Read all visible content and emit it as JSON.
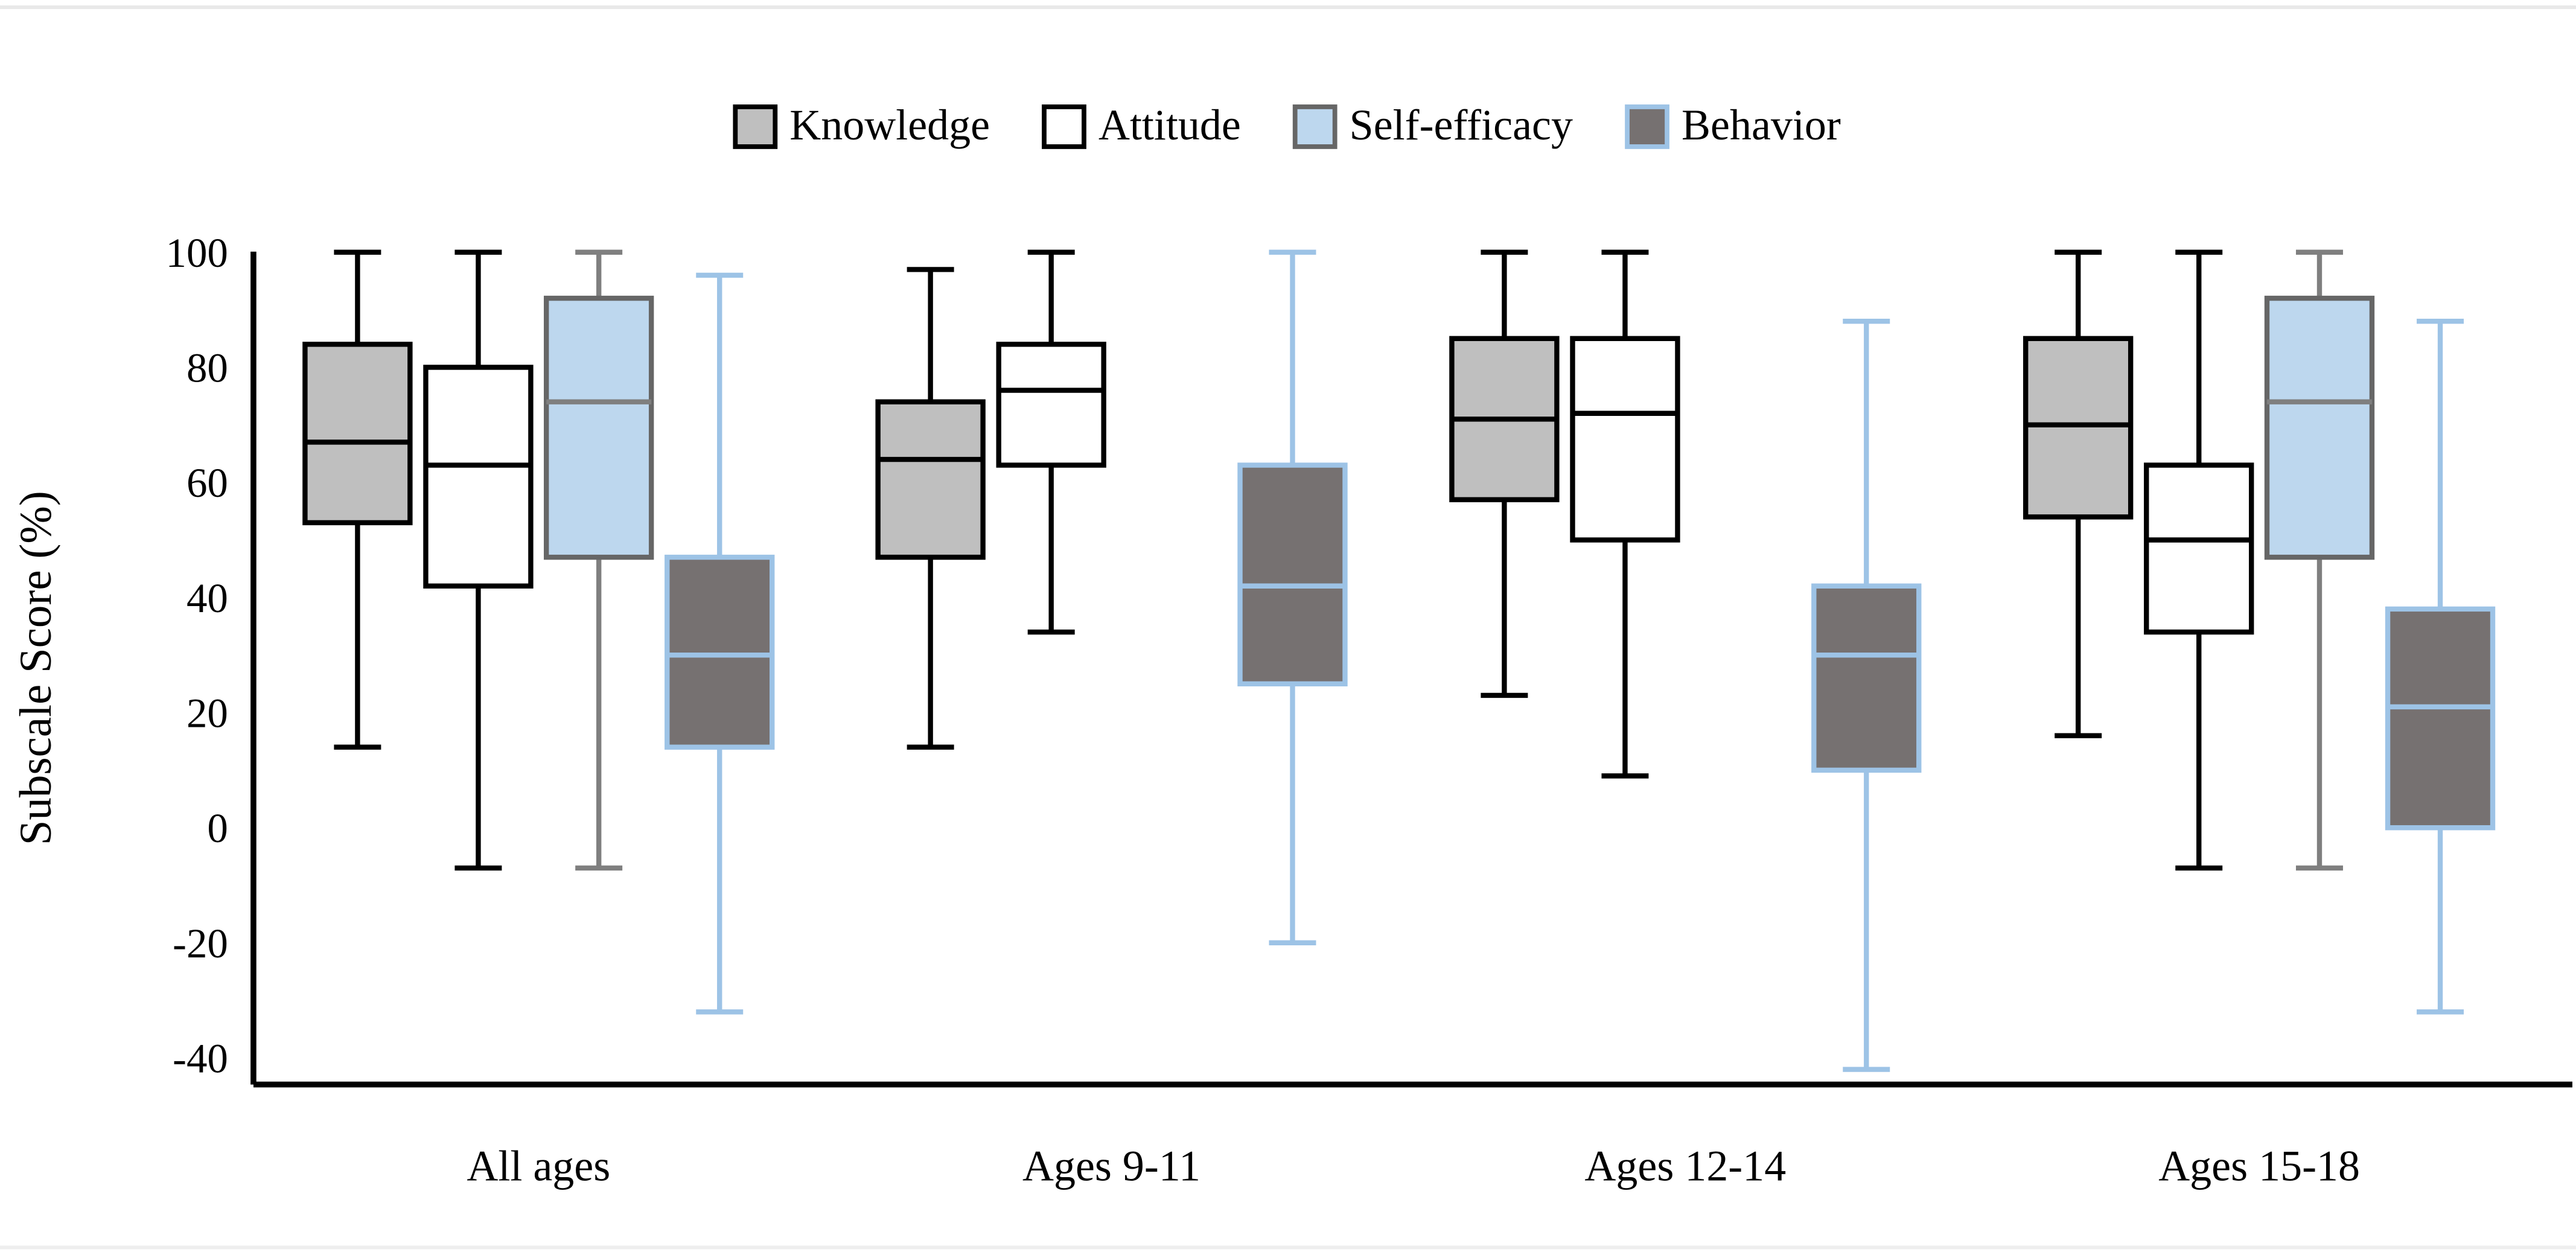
{
  "page": {
    "background": "#ffffff",
    "top_divider_color": "#e9e9e9",
    "bottom_divider_color": "#eeeeee"
  },
  "legend": {
    "position": "top-center",
    "items": [
      {
        "label": "Knowledge",
        "fill": "#bfbfbf",
        "border": "#000000"
      },
      {
        "label": "Attitude",
        "fill": "#ffffff",
        "border": "#000000"
      },
      {
        "label": "Self-efficacy",
        "fill": "#bdd7ee",
        "border": "#666666"
      },
      {
        "label": "Behavior",
        "fill": "#767171",
        "border": "#9dc3e6"
      }
    ]
  },
  "chart_data": {
    "type": "boxplot",
    "title": "",
    "xlabel": "",
    "ylabel": "Subscale Score (%)",
    "grid": false,
    "legend_position": "top",
    "y_ticks": [
      100,
      80,
      60,
      40,
      20,
      0,
      -20,
      -40
    ],
    "ylim": [
      -45,
      102
    ],
    "categories": [
      "All ages",
      "Ages 9-11",
      "Ages 12-14",
      "Ages 15-18"
    ],
    "box_stats_order": [
      "min",
      "q1",
      "median",
      "q3",
      "max"
    ],
    "series": [
      {
        "name": "Knowledge",
        "fill": "#bfbfbf",
        "stroke": "#000000",
        "whisker": "#000000",
        "boxes": [
          {
            "category": "All ages",
            "min": 14,
            "q1": 53,
            "median": 67,
            "q3": 84,
            "max": 100
          },
          {
            "category": "Ages 9-11",
            "min": 14,
            "q1": 47,
            "median": 64,
            "q3": 74,
            "max": 97
          },
          {
            "category": "Ages 12-14",
            "min": 23,
            "q1": 57,
            "median": 71,
            "q3": 85,
            "max": 100
          },
          {
            "category": "Ages 15-18",
            "min": 16,
            "q1": 54,
            "median": 70,
            "q3": 85,
            "max": 100
          }
        ]
      },
      {
        "name": "Attitude",
        "fill": "#ffffff",
        "stroke": "#000000",
        "whisker": "#000000",
        "boxes": [
          {
            "category": "All ages",
            "min": -7,
            "q1": 42,
            "median": 63,
            "q3": 80,
            "max": 100
          },
          {
            "category": "Ages 9-11",
            "min": 34,
            "q1": 63,
            "median": 76,
            "q3": 84,
            "max": 100
          },
          {
            "category": "Ages 12-14",
            "min": 9,
            "q1": 50,
            "median": 72,
            "q3": 85,
            "max": 100
          },
          {
            "category": "Ages 15-18",
            "min": -7,
            "q1": 34,
            "median": 50,
            "q3": 63,
            "max": 100
          }
        ]
      },
      {
        "name": "Self-efficacy",
        "fill": "#bdd7ee",
        "stroke": "#666666",
        "whisker": "#7f7f7f",
        "boxes": [
          {
            "category": "All ages",
            "min": -7,
            "q1": 47,
            "median": 74,
            "q3": 92,
            "max": 100
          },
          null,
          null,
          {
            "category": "Ages 15-18",
            "min": -7,
            "q1": 47,
            "median": 74,
            "q3": 92,
            "max": 100
          }
        ]
      },
      {
        "name": "Behavior",
        "fill": "#767171",
        "stroke": "#9dc3e6",
        "whisker": "#9dc3e6",
        "boxes": [
          {
            "category": "All ages",
            "min": -32,
            "q1": 14,
            "median": 30,
            "q3": 47,
            "max": 96
          },
          {
            "category": "Ages 9-11",
            "min": -20,
            "q1": 25,
            "median": 42,
            "q3": 63,
            "max": 100
          },
          {
            "category": "Ages 12-14",
            "min": -42,
            "q1": 10,
            "median": 30,
            "q3": 42,
            "max": 88
          },
          {
            "category": "Ages 15-18",
            "min": -32,
            "q1": 0,
            "median": 21,
            "q3": 38,
            "max": 88
          }
        ]
      }
    ]
  }
}
